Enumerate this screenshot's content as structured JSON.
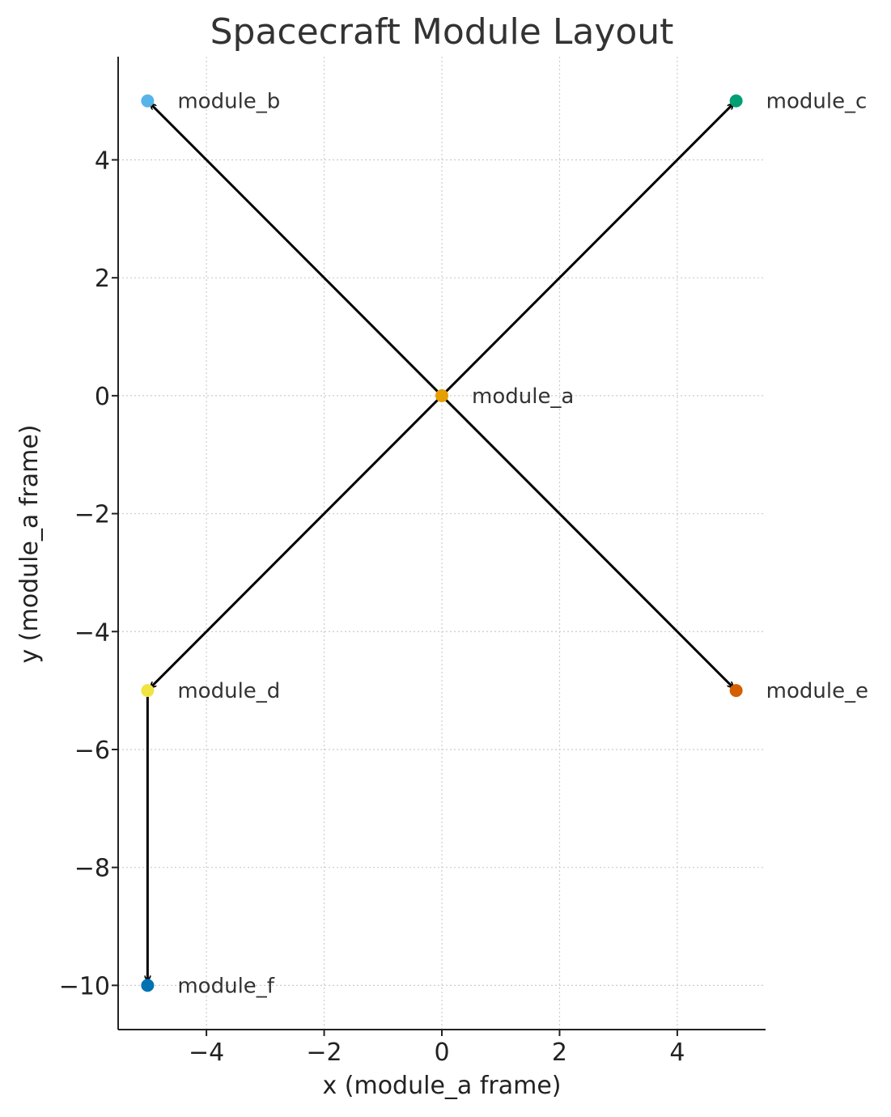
{
  "chart_data": {
    "type": "scatter",
    "title": "Spacecraft Module Layout",
    "xlabel": "x (module_a frame)",
    "ylabel": "y (module_a frame)",
    "xlim": [
      -5.5,
      5.5
    ],
    "ylim": [
      -10.75,
      5.75
    ],
    "xticks": [
      -4,
      -2,
      0,
      2,
      4
    ],
    "yticks": [
      -10,
      -8,
      -6,
      -4,
      -2,
      0,
      2,
      4
    ],
    "grid": true,
    "points": [
      {
        "label": "module_a",
        "x": 0,
        "y": 0,
        "color": "#E69F00"
      },
      {
        "label": "module_b",
        "x": -5,
        "y": 5,
        "color": "#56B4E9"
      },
      {
        "label": "module_c",
        "x": 5,
        "y": 5,
        "color": "#009E73"
      },
      {
        "label": "module_d",
        "x": -5,
        "y": -5,
        "color": "#F0E442"
      },
      {
        "label": "module_e",
        "x": 5,
        "y": -5,
        "color": "#D55E00"
      },
      {
        "label": "module_f",
        "x": -5,
        "y": -10,
        "color": "#0072B2"
      }
    ],
    "connections": [
      {
        "from": "module_a",
        "to": "module_b"
      },
      {
        "from": "module_a",
        "to": "module_c"
      },
      {
        "from": "module_a",
        "to": "module_d"
      },
      {
        "from": "module_a",
        "to": "module_e"
      },
      {
        "from": "module_d",
        "to": "module_f"
      }
    ]
  }
}
